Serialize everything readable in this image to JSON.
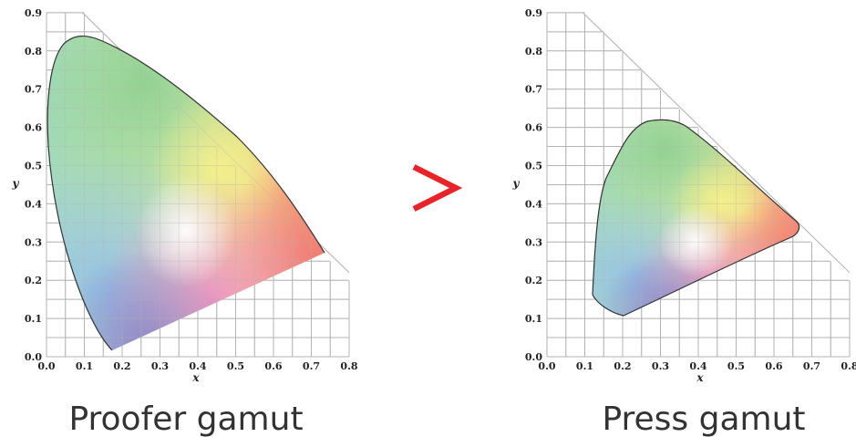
{
  "left_panel": {
    "caption": "Proofer gamut",
    "x_axis_label": "x",
    "y_axis_label": "y",
    "x_ticks": [
      "0.0",
      "0.1",
      "0.2",
      "0.3",
      "0.4",
      "0.5",
      "0.6",
      "0.7",
      "0.8"
    ],
    "y_ticks": [
      "0.0",
      "0.1",
      "0.2",
      "0.3",
      "0.4",
      "0.5",
      "0.6",
      "0.7",
      "0.8",
      "0.9"
    ]
  },
  "comparison_symbol": ">",
  "right_panel": {
    "caption": "Press gamut",
    "x_axis_label": "x",
    "y_axis_label": "y",
    "x_ticks": [
      "0.0",
      "0.1",
      "0.2",
      "0.3",
      "0.4",
      "0.5",
      "0.6",
      "0.7",
      "0.8"
    ],
    "y_ticks": [
      "0.0",
      "0.1",
      "0.2",
      "0.3",
      "0.4",
      "0.5",
      "0.6",
      "0.7",
      "0.8",
      "0.9"
    ]
  },
  "colors": {
    "comparison_symbol": "#e8242a",
    "grid": "#b3b3b3"
  }
}
